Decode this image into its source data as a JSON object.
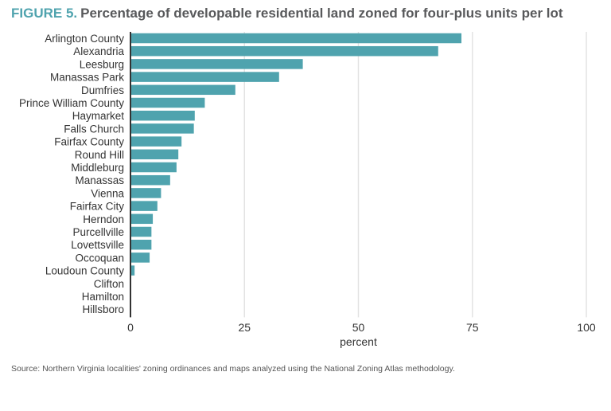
{
  "figure_label": "FIGURE 5.",
  "title": "Percentage of developable residential land zoned for four-plus units per lot",
  "source": "Source: Northern Virginia localities' zoning ordinances and maps analyzed using the National Zoning Atlas methodology.",
  "chart_data": {
    "type": "bar",
    "orientation": "horizontal",
    "title": "Percentage of developable residential land zoned for four-plus units per lot",
    "xlabel": "percent",
    "ylabel": "",
    "xlim": [
      0,
      100
    ],
    "xticks": [
      0,
      25,
      50,
      75,
      100
    ],
    "grid": true,
    "bar_color": "#4fa3ae",
    "categories": [
      "Arlington County",
      "Alexandria",
      "Leesburg",
      "Manassas Park",
      "Dumfries",
      "Prince William County",
      "Haymarket",
      "Falls Church",
      "Fairfax County",
      "Round Hill",
      "Middleburg",
      "Manassas",
      "Vienna",
      "Fairfax City",
      "Herndon",
      "Purcellville",
      "Lovettsville",
      "Occoquan",
      "Loudoun County",
      "Clifton",
      "Hamilton",
      "Hillsboro"
    ],
    "values": [
      72.6,
      67.5,
      37.8,
      32.6,
      23.0,
      16.3,
      14.1,
      13.9,
      11.2,
      10.5,
      10.1,
      8.7,
      6.7,
      5.9,
      4.9,
      4.6,
      4.6,
      4.2,
      0.9,
      0,
      0,
      0
    ]
  }
}
